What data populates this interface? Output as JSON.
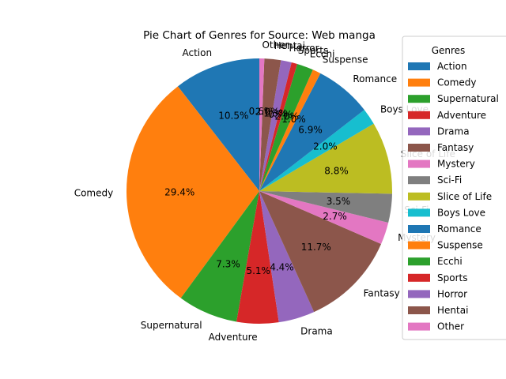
{
  "chart_data": {
    "type": "pie",
    "title": "Pie Chart of Genres for Source: Web manga",
    "legend_title": "Genres",
    "legend_position": "right",
    "start_angle": 90,
    "direction": "counterclockwise",
    "categories": [
      "Action",
      "Comedy",
      "Supernatural",
      "Adventure",
      "Drama",
      "Fantasy",
      "Mystery",
      "Sci-Fi",
      "Slice of Life",
      "Boys Love",
      "Romance",
      "Suspense",
      "Ecchi",
      "Sports",
      "Horror",
      "Hentai",
      "Other"
    ],
    "values": [
      10.5,
      29.4,
      7.3,
      5.1,
      4.4,
      11.7,
      2.7,
      3.5,
      8.8,
      2.0,
      6.9,
      1.0,
      2.0,
      0.7,
      1.3,
      2.0,
      0.6
    ],
    "pct_labels": [
      "10.5%",
      "29.4%",
      "7.3%",
      "5.1%",
      "4.4%",
      "11.7%",
      "2.7%",
      "3.5%",
      "8.8%",
      "2.0%",
      "6.9%",
      "1.0%",
      "2.0%",
      "0.7%",
      "1.3%",
      "2.0%",
      "0.6%"
    ],
    "legend_labels": [
      "Action",
      "Comedy",
      "Supernatural",
      "Adventure",
      "Drama",
      "Fantasy",
      "Mystery",
      "Sci-Fi",
      "Slice of Life",
      "Boys Love",
      "Romance",
      "Suspense",
      "Ecchi",
      "Sports",
      "Horror",
      "Hentai",
      "Other"
    ],
    "colors": [
      "#1f77b4",
      "#ff7f0e",
      "#2ca02c",
      "#d62728",
      "#9467bd",
      "#8c564b",
      "#e377c2",
      "#7f7f7f",
      "#bcbd22",
      "#17becf",
      "#1f77b4",
      "#ff7f0e",
      "#2ca02c",
      "#d62728",
      "#9467bd",
      "#8c564b",
      "#e377c2"
    ]
  }
}
